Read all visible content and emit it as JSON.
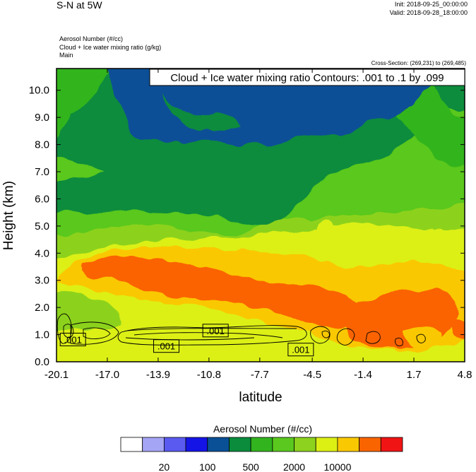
{
  "header": {
    "title": "S-N at 5W",
    "init": "Init: 2018-09-25_00:00:00",
    "valid": "Valid: 2018-09-28_18:00:00",
    "field_1": "Aerosol Number   (#/cc)",
    "field_2": "Cloud + Ice water mixing ratio   (g/kg)",
    "field_3": "Main",
    "cross_section": "Cross-Section: (269,231) to (269,485)"
  },
  "chart_data": {
    "type": "heatmap",
    "title": "Cloud + Ice water mixing ratio Contours: .001 to .1 by .099",
    "xlabel": "latitude",
    "ylabel": "Height (km)",
    "xlim": [
      -20.1,
      4.8
    ],
    "ylim": [
      0.0,
      10.8
    ],
    "x_ticks": [
      -20.1,
      -17.0,
      -13.9,
      -10.8,
      -7.7,
      -4.5,
      -1.4,
      1.7,
      4.8
    ],
    "x_tick_labels": [
      "-20.1",
      "-17.0",
      "-13.9",
      "-10.8",
      "-7.7",
      "-4.5",
      "-1.4",
      "1.7",
      "4.8"
    ],
    "y_ticks": [
      0,
      1,
      2,
      3,
      4,
      5,
      6,
      7,
      8,
      9,
      10
    ],
    "y_tick_labels": [
      "0.0",
      "1.0",
      "2.0",
      "3.0",
      "4.0",
      "5.0",
      "6.0",
      "7.0",
      "8.0",
      "9.0",
      "10.0"
    ],
    "contour_labels": [
      {
        "text": ".001",
        "x": -19.1,
        "y": 0.82
      },
      {
        "text": ".001",
        "x": -13.4,
        "y": 0.58
      },
      {
        "text": ".001",
        "x": -10.4,
        "y": 1.15
      },
      {
        "text": ".001",
        "x": -5.2,
        "y": 0.45
      }
    ],
    "colorbar": {
      "title": "Aerosol Number  (#/cc)",
      "colors": [
        "#ffffff",
        "#a5a5f5",
        "#5a5af0",
        "#1414e6",
        "#0a5096",
        "#0a8c3c",
        "#32b41e",
        "#5ac81e",
        "#8cd21e",
        "#dcf014",
        "#fac800",
        "#fa6400",
        "#f01414"
      ],
      "tick_labels": [
        "20",
        "100",
        "500",
        "2000",
        "10000"
      ]
    }
  }
}
